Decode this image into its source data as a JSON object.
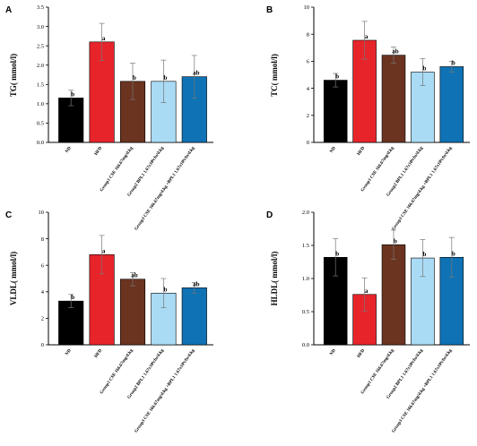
{
  "categories": [
    "ND",
    "HFD",
    "Group1 CSE 166.67mg/d.kg",
    "Group2 BPL1 1.67x10⁸cfu/d.kg",
    "Group3 CSE 166.67mg/d.kg +BPL1 1.67x10⁸cfu/d.kg"
  ],
  "colors": [
    "#000000",
    "#e8242b",
    "#6b3420",
    "#a9dbf5",
    "#0f72b4"
  ],
  "chart_data": [
    {
      "type": "bar",
      "panel_label": "A",
      "ylabel": "TG( mmol/l)",
      "ylim": [
        0,
        3.5
      ],
      "ticks": [
        "0.0",
        "0.5",
        "1.0",
        "1.5",
        "2.0",
        "2.5",
        "3.0",
        "3.5"
      ],
      "values": [
        1.15,
        2.6,
        1.58,
        1.58,
        1.7
      ],
      "errors": [
        0.2,
        0.48,
        0.47,
        0.55,
        0.55
      ],
      "significance": [
        "b",
        "a",
        "b",
        "b",
        "ab"
      ]
    },
    {
      "type": "bar",
      "panel_label": "B",
      "ylabel": "TC( mmol/l)",
      "ylim": [
        0,
        10
      ],
      "ticks": [
        "0",
        "2",
        "4",
        "6",
        "8",
        "10"
      ],
      "values": [
        4.6,
        7.55,
        6.45,
        5.2,
        5.6
      ],
      "errors": [
        0.5,
        1.4,
        0.6,
        1.0,
        0.4
      ],
      "significance": [
        "b",
        "a",
        "ab",
        "b",
        "b"
      ]
    },
    {
      "type": "bar",
      "panel_label": "C",
      "ylabel": "VLDL( mmol/l)",
      "ylim": [
        0,
        10
      ],
      "ticks": [
        "0",
        "2",
        "4",
        "6",
        "8",
        "10"
      ],
      "values": [
        3.3,
        6.8,
        4.95,
        3.9,
        4.3
      ],
      "errors": [
        0.5,
        1.45,
        0.5,
        1.1,
        0.4
      ],
      "significance": [
        "b",
        "a",
        "ab",
        "b",
        "ab"
      ]
    },
    {
      "type": "bar",
      "panel_label": "D",
      "ylabel": "HLDL( mmol/l)",
      "ylim": [
        0,
        2.0
      ],
      "ticks": [
        "0.0",
        "0.5",
        "1.0",
        "1.5",
        "2.0"
      ],
      "values": [
        1.32,
        0.76,
        1.51,
        1.31,
        1.32
      ],
      "errors": [
        0.28,
        0.25,
        0.22,
        0.28,
        0.3
      ],
      "significance": [
        "b",
        "a",
        "b",
        "b",
        "b"
      ]
    }
  ]
}
